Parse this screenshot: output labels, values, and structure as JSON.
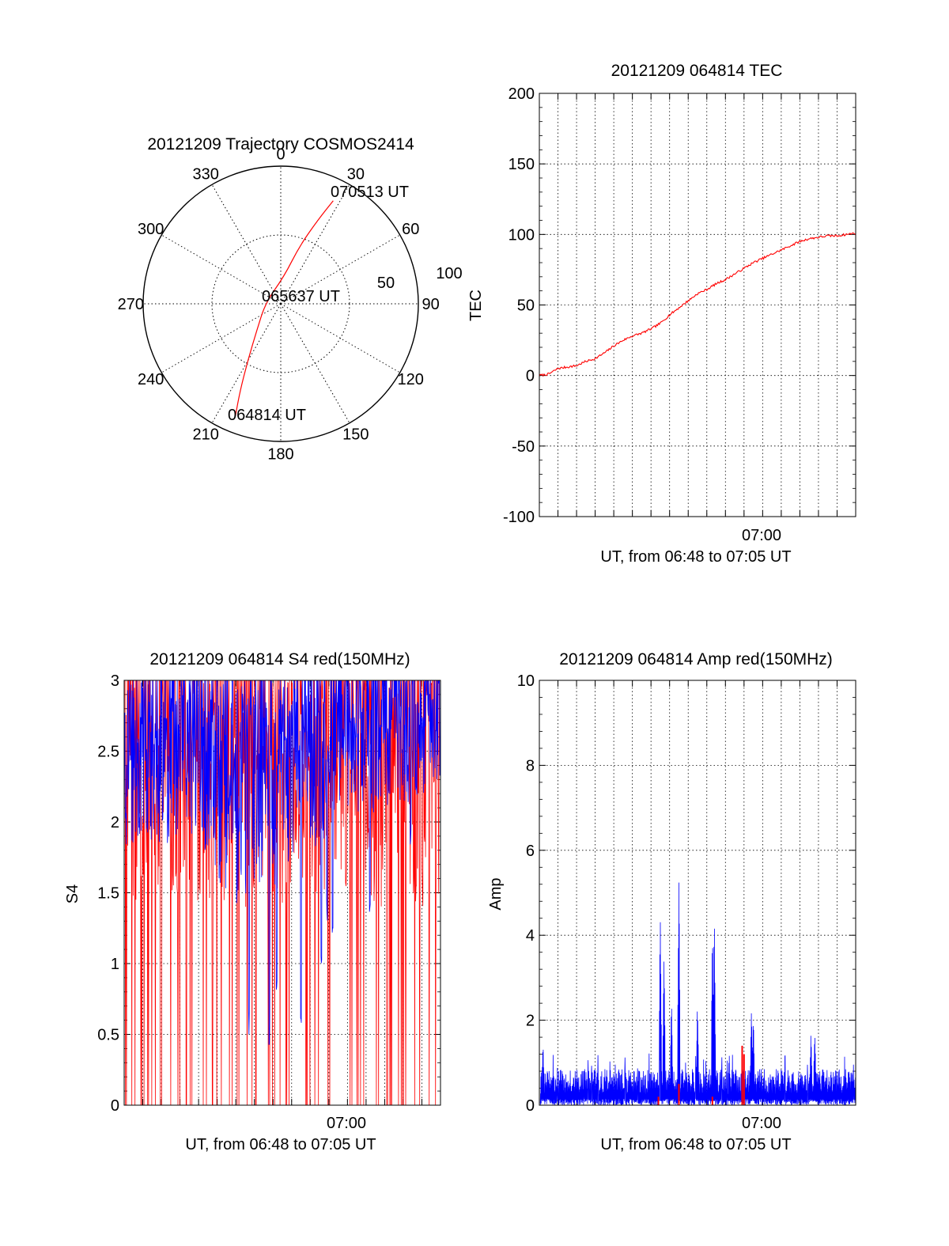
{
  "colors": {
    "primary": "#ff0000",
    "secondary": "#0000ff",
    "axis": "#000000",
    "grid": "#000000"
  },
  "chart_data": [
    {
      "id": "trajectory",
      "type": "polar",
      "title": "20121209 Trajectory COSMOS2414",
      "r_max": 100,
      "r_rings": [
        50,
        100
      ],
      "r_ring_labels": [
        "50",
        "100"
      ],
      "azimuth_labels": [
        {
          "az": 0,
          "label": "0"
        },
        {
          "az": 30,
          "label": "30"
        },
        {
          "az": 60,
          "label": "60"
        },
        {
          "az": 90,
          "label": "90"
        },
        {
          "az": 120,
          "label": "120"
        },
        {
          "az": 150,
          "label": "150"
        },
        {
          "az": 180,
          "label": "180"
        },
        {
          "az": 210,
          "label": "210"
        },
        {
          "az": 240,
          "label": "240"
        },
        {
          "az": 270,
          "label": "270"
        },
        {
          "az": 300,
          "label": "300"
        },
        {
          "az": 330,
          "label": "330"
        }
      ],
      "series": [
        {
          "name": "COSMOS2414",
          "color": "#ff0000",
          "points": [
            {
              "az": 202,
              "r": 88
            },
            {
              "az": 205,
              "r": 70
            },
            {
              "az": 210,
              "r": 48
            },
            {
              "az": 222,
              "r": 26
            },
            {
              "az": 275,
              "r": 11
            },
            {
              "az": 7,
              "r": 20
            },
            {
              "az": 18,
              "r": 44
            },
            {
              "az": 24,
              "r": 67
            },
            {
              "az": 27,
              "r": 84
            }
          ]
        }
      ],
      "annotations": [
        {
          "text": "064814 UT",
          "az": 200,
          "r": 86
        },
        {
          "text": "065637 UT",
          "az": 0,
          "r": 0
        },
        {
          "text": "070513 UT",
          "az": 33,
          "r": 86
        }
      ]
    },
    {
      "id": "tec",
      "type": "line",
      "title": "20121209 064814 TEC",
      "xlabel": "UT, from 06:48 to 07:05 UT",
      "ylabel": "TEC",
      "xlim_minutes_after_0648": [
        0,
        17
      ],
      "ylim": [
        -100,
        200
      ],
      "yticks": [
        -100,
        -50,
        0,
        50,
        100,
        150,
        200
      ],
      "xtick_labels": [
        {
          "minute": 12,
          "label": "07:00"
        }
      ],
      "x_gridline_minutes": [
        1,
        2,
        3,
        4,
        5,
        6,
        7,
        8,
        9,
        10,
        11,
        12,
        13,
        14,
        15,
        16
      ],
      "series": [
        {
          "name": "TEC",
          "color": "#ff0000",
          "points": [
            [
              0,
              0
            ],
            [
              0.5,
              1
            ],
            [
              1,
              5
            ],
            [
              1.5,
              6
            ],
            [
              2,
              7
            ],
            [
              2.5,
              10
            ],
            [
              3,
              12
            ],
            [
              3.5,
              16
            ],
            [
              4,
              21
            ],
            [
              4.5,
              25
            ],
            [
              5,
              28
            ],
            [
              5.5,
              30
            ],
            [
              6,
              33
            ],
            [
              6.5,
              37
            ],
            [
              7,
              43
            ],
            [
              7.5,
              48
            ],
            [
              8,
              53
            ],
            [
              8.5,
              58
            ],
            [
              9,
              61
            ],
            [
              9.5,
              65
            ],
            [
              10,
              68
            ],
            [
              10.5,
              72
            ],
            [
              11,
              76
            ],
            [
              11.5,
              80
            ],
            [
              12,
              83
            ],
            [
              12.5,
              86
            ],
            [
              13,
              89
            ],
            [
              13.5,
              92
            ],
            [
              14,
              95
            ],
            [
              14.5,
              97
            ],
            [
              15,
              98
            ],
            [
              15.5,
              99
            ],
            [
              16,
              99
            ],
            [
              16.5,
              100
            ],
            [
              17,
              101
            ]
          ]
        }
      ]
    },
    {
      "id": "s4",
      "type": "line",
      "title": "20121209 064814 S4 red(150MHz)",
      "xlabel": "UT, from 06:48 to 07:05 UT",
      "ylabel": "S4",
      "xlim_minutes_after_0648": [
        0,
        17
      ],
      "ylim": [
        0,
        3
      ],
      "yticks": [
        0,
        0.5,
        1,
        1.5,
        2,
        2.5,
        3
      ],
      "ytick_labels": [
        "0",
        "0.5",
        "1",
        "1.5",
        "2",
        "2.5",
        "3"
      ],
      "xtick_labels": [
        {
          "minute": 12,
          "label": "07:00"
        }
      ],
      "x_gridline_minutes": [
        1,
        2,
        3,
        4,
        5,
        6,
        7,
        8,
        9,
        10,
        11,
        12,
        13,
        14,
        15,
        16
      ],
      "series": [
        {
          "name": "red",
          "color": "#ff0000",
          "description": "saturated noisy trace spanning 0–3"
        },
        {
          "name": "blue",
          "color": "#0000ff",
          "description": "noisy trace mostly 1.5–3 with dips to 0.4"
        }
      ],
      "blue_envelope": [
        [
          0,
          1.7
        ],
        [
          1,
          1.9
        ],
        [
          2,
          1.8
        ],
        [
          3,
          1.9
        ],
        [
          4,
          1.9
        ],
        [
          5,
          1.6
        ],
        [
          6,
          1.4
        ],
        [
          7,
          1.5
        ],
        [
          8,
          1.4
        ],
        [
          9,
          1.7
        ],
        [
          10,
          1.8
        ],
        [
          11,
          1.9
        ],
        [
          12,
          2.0
        ],
        [
          13,
          2.0
        ],
        [
          14,
          2.1
        ],
        [
          15,
          2.1
        ],
        [
          16,
          2.2
        ],
        [
          17,
          2.2
        ]
      ],
      "blue_dips": [
        [
          6.7,
          0.5
        ],
        [
          7.8,
          0.4
        ],
        [
          8.2,
          0.7
        ],
        [
          9.5,
          0.45
        ],
        [
          10.6,
          0.9
        ],
        [
          11.2,
          1.1
        ],
        [
          10.9,
          1.3
        ],
        [
          13.2,
          1.3
        ],
        [
          15.4,
          1.8
        ]
      ]
    },
    {
      "id": "amp",
      "type": "line",
      "title": "20121209 064814 Amp red(150MHz)",
      "xlabel": "UT, from 06:48 to 07:05 UT",
      "ylabel": "Amp",
      "xlim_minutes_after_0648": [
        0,
        17
      ],
      "ylim": [
        0,
        10
      ],
      "yticks": [
        0,
        2,
        4,
        6,
        8,
        10
      ],
      "xtick_labels": [
        {
          "minute": 12,
          "label": "07:00"
        }
      ],
      "x_gridline_minutes": [
        1,
        2,
        3,
        4,
        5,
        6,
        7,
        8,
        9,
        10,
        11,
        12,
        13,
        14,
        15,
        16
      ],
      "series": [
        {
          "name": "blue",
          "color": "#0000ff",
          "baseline": 0.6,
          "peaks": [
            [
              6.5,
              4.4
            ],
            [
              6.7,
              3.5
            ],
            [
              7.1,
              2.3
            ],
            [
              7.5,
              5.3
            ],
            [
              8.5,
              2.3
            ],
            [
              9.3,
              4.1
            ],
            [
              9.4,
              4.4
            ],
            [
              10.2,
              1.1
            ],
            [
              11.4,
              2.3
            ],
            [
              11.5,
              2.0
            ],
            [
              14.6,
              1.6
            ],
            [
              14.8,
              1.7
            ],
            [
              0.2,
              1.3
            ]
          ]
        },
        {
          "name": "red",
          "color": "#ff0000",
          "peaks": [
            [
              6.4,
              0.2
            ],
            [
              7.5,
              0.5
            ],
            [
              9.3,
              0.2
            ],
            [
              10.9,
              1.4
            ],
            [
              11.0,
              1.2
            ]
          ]
        }
      ]
    }
  ]
}
